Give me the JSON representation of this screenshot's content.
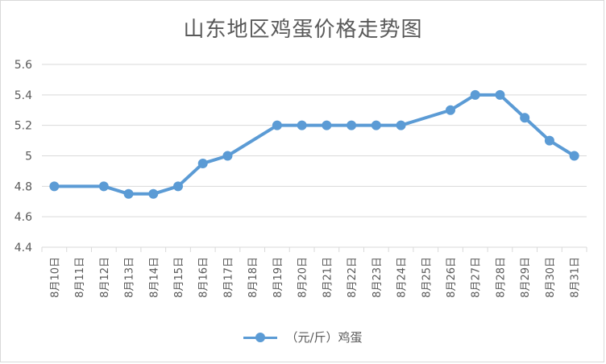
{
  "chart_data": {
    "type": "line",
    "title": "山东地区鸡蛋价格走势图",
    "categories": [
      "8月10日",
      "8月11日",
      "8月12日",
      "8月13日",
      "8月14日",
      "8月15日",
      "8月16日",
      "8月17日",
      "8月18日",
      "8月19日",
      "8月20日",
      "8月21日",
      "8月22日",
      "8月23日",
      "8月24日",
      "8月25日",
      "8月26日",
      "8月27日",
      "8月28日",
      "8月29日",
      "8月30日",
      "8月31日"
    ],
    "series": [
      {
        "name": "（元/斤）鸡蛋",
        "x": [
          "8月10日",
          "8月12日",
          "8月13日",
          "8月14日",
          "8月15日",
          "8月16日",
          "8月17日",
          "8月19日",
          "8月20日",
          "8月21日",
          "8月22日",
          "8月23日",
          "8月24日",
          "8月26日",
          "8月27日",
          "8月28日",
          "8月29日",
          "8月30日",
          "8月31日"
        ],
        "values": [
          4.8,
          4.8,
          4.75,
          4.75,
          4.8,
          4.95,
          5.0,
          5.2,
          5.2,
          5.2,
          5.2,
          5.2,
          5.2,
          5.3,
          5.4,
          5.4,
          5.25,
          5.1,
          5.0
        ]
      }
    ],
    "yticks": [
      "4.4",
      "4.6",
      "4.8",
      "5",
      "5.2",
      "5.4",
      "5.6"
    ],
    "ylim": [
      4.4,
      5.6
    ],
    "grid": true,
    "legend_position": "bottom",
    "colors": {
      "line": "#5b9bd5",
      "grid": "#d9d9d9",
      "text": "#595959"
    }
  }
}
